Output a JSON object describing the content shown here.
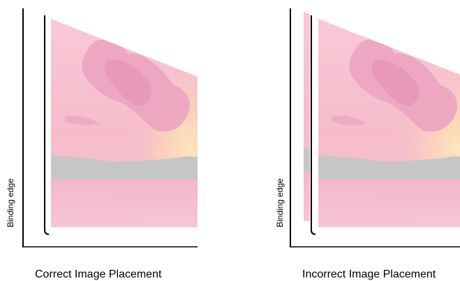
{
  "panels": [
    {
      "caption": "Correct Image Placement",
      "binding_label": "Binding edge",
      "placement": "correct"
    },
    {
      "caption": "Incorrect Image Placement",
      "binding_label": "Binding edge",
      "placement": "incorrect"
    }
  ],
  "colors": {
    "sky_top": "#f7c3d1",
    "sky_mid": "#f5b9cc",
    "cloud": "#eaa0bd",
    "glow": "#fbe0b4",
    "land": "#c6c5c5",
    "water": "#f5bdd0",
    "line": "#000000"
  }
}
